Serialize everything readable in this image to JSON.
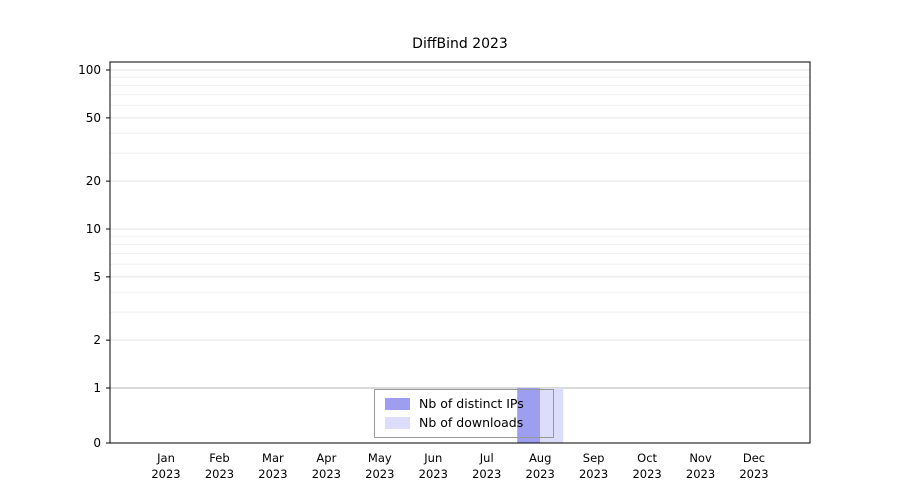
{
  "figure": {
    "title": "DiffBind 2023"
  },
  "chart_data": {
    "type": "bar",
    "title": "DiffBind 2023",
    "categories": [
      {
        "month": "Jan",
        "year": "2023"
      },
      {
        "month": "Feb",
        "year": "2023"
      },
      {
        "month": "Mar",
        "year": "2023"
      },
      {
        "month": "Apr",
        "year": "2023"
      },
      {
        "month": "May",
        "year": "2023"
      },
      {
        "month": "Jun",
        "year": "2023"
      },
      {
        "month": "Jul",
        "year": "2023"
      },
      {
        "month": "Aug",
        "year": "2023"
      },
      {
        "month": "Sep",
        "year": "2023"
      },
      {
        "month": "Oct",
        "year": "2023"
      },
      {
        "month": "Nov",
        "year": "2023"
      },
      {
        "month": "Dec",
        "year": "2023"
      }
    ],
    "series": [
      {
        "name": "Nb of distinct IPs",
        "color": "#9e9ef0",
        "values": [
          0,
          0,
          0,
          0,
          0,
          0,
          0,
          1,
          0,
          0,
          0,
          0
        ]
      },
      {
        "name": "Nb of downloads",
        "color": "#dcdcfb",
        "values": [
          0,
          0,
          0,
          0,
          0,
          0,
          0,
          1,
          0,
          0,
          0,
          0
        ]
      }
    ],
    "y_axis": {
      "scale": "symlog",
      "ticks": [
        0,
        1,
        2,
        5,
        10,
        20,
        50,
        100
      ],
      "minor_ticks": [
        3,
        4,
        6,
        7,
        8,
        9,
        30,
        40,
        60,
        70,
        80,
        90
      ],
      "lim": [
        0,
        100
      ]
    },
    "x_axis": {
      "label": ""
    },
    "legend": {
      "position": "bottom-center",
      "entries": [
        "Nb of distinct IPs",
        "Nb of downloads"
      ]
    },
    "grid": true,
    "colors": {
      "major_gridline": "#e3e3e3",
      "unit_gridline": "#b5b5b5",
      "minor_gridline": "#efefef",
      "axis": "#000000"
    }
  }
}
